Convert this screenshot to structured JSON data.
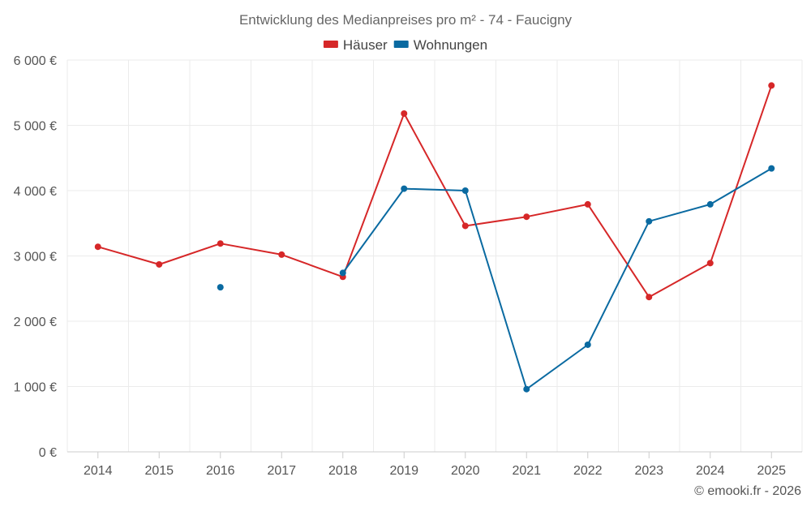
{
  "chart_data": {
    "type": "line",
    "title": "Entwicklung des Medianpreises pro m² - 74 - Faucigny",
    "x": [
      "2014",
      "2015",
      "2016",
      "2017",
      "2018",
      "2019",
      "2020",
      "2021",
      "2022",
      "2023",
      "2024",
      "2025"
    ],
    "ylim": [
      0,
      6000
    ],
    "yticks": [
      0,
      1000,
      2000,
      3000,
      4000,
      5000,
      6000
    ],
    "ytick_labels": [
      "0 €",
      "1 000 €",
      "2 000 €",
      "3 000 €",
      "4 000 €",
      "5 000 €",
      "6 000 €"
    ],
    "grid": true,
    "legend_position": "top-center",
    "series": [
      {
        "name": "Häuser",
        "color": "#d62728",
        "values": [
          3140,
          2870,
          3190,
          3020,
          2680,
          5180,
          3460,
          3600,
          3790,
          2370,
          2890,
          5610
        ]
      },
      {
        "name": "Wohnungen",
        "color": "#0a6aa1",
        "values": [
          null,
          null,
          2520,
          null,
          2740,
          4030,
          4000,
          960,
          1640,
          3530,
          3790,
          4340
        ]
      }
    ]
  },
  "credit": "© emooki.fr - 2026"
}
